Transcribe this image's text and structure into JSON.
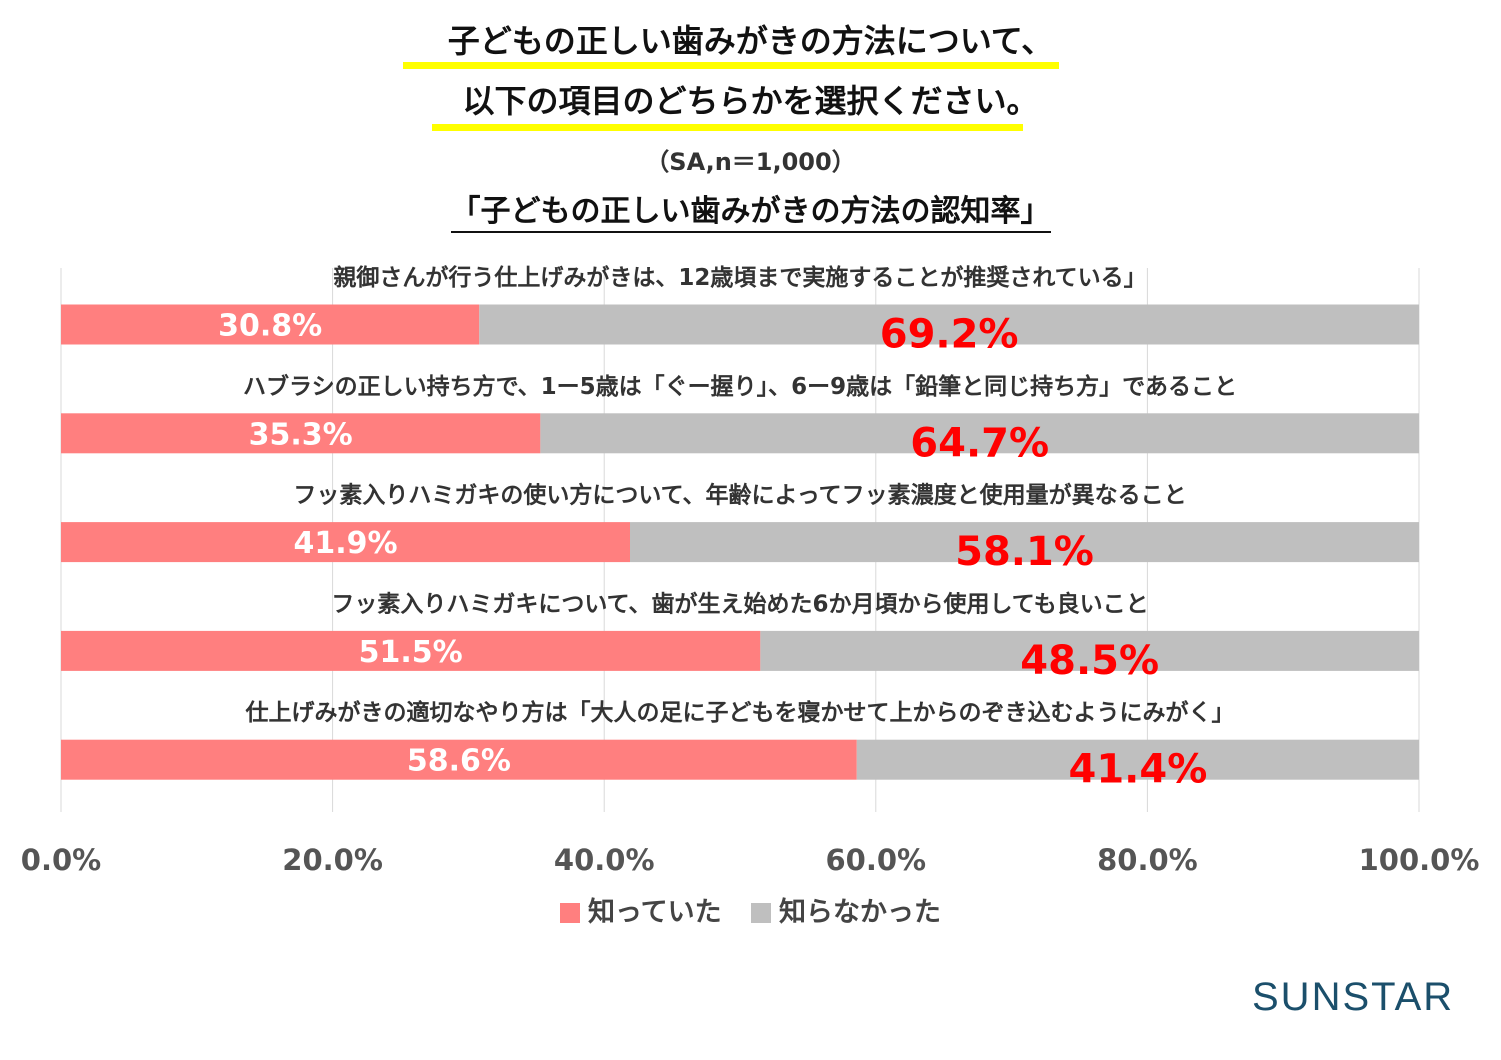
{
  "header": {
    "title_line1": "子どもの正しい歯みがきの方法について、",
    "title_line2": "以下の項目のどちらかを選択ください。",
    "sample": "（SA,n＝1,000）"
  },
  "logo": "SUNSTAR",
  "colors": {
    "knew": "#ff7f7f",
    "didnt_know": "#bfbfbf",
    "big_label": "#ff0000",
    "highlight": "#ffff00"
  },
  "chart_data": {
    "type": "bar",
    "orientation": "horizontal",
    "stacked": true,
    "title": "「子どもの正しい歯みがきの方法の認知率」",
    "categories": [
      "親御さんが行う仕上げみがきは、12歳頃まで実施することが推奨されている」",
      "ハブラシの正しい持ち方で、1ー5歳は「ぐー握り」、6ー9歳は「鉛筆と同じ持ち方」であること",
      "フッ素入りハミガキの使い方について、年齢によってフッ素濃度と使用量が異なること",
      "フッ素入りハミガキについて、歯が生え始めた6か月頃から使用しても良いこと",
      "仕上げみがきの適切なやり方は「大人の足に子どもを寝かせて上からのぞき込むようにみがく」"
    ],
    "series": [
      {
        "name": "知っていた",
        "values": [
          30.8,
          35.3,
          41.9,
          51.5,
          58.6
        ],
        "labels": [
          "30.8%",
          "35.3%",
          "41.9%",
          "51.5%",
          "58.6%"
        ]
      },
      {
        "name": "知らなかった",
        "values": [
          69.2,
          64.7,
          58.1,
          48.5,
          41.4
        ],
        "labels": [
          "69.2%",
          "64.7%",
          "58.1%",
          "48.5%",
          "41.4%"
        ]
      }
    ],
    "xlim": [
      0,
      100
    ],
    "xticks": [
      "0.0%",
      "20.0%",
      "40.0%",
      "60.0%",
      "80.0%",
      "100.0%"
    ],
    "grid": true,
    "legend": "bottom"
  }
}
